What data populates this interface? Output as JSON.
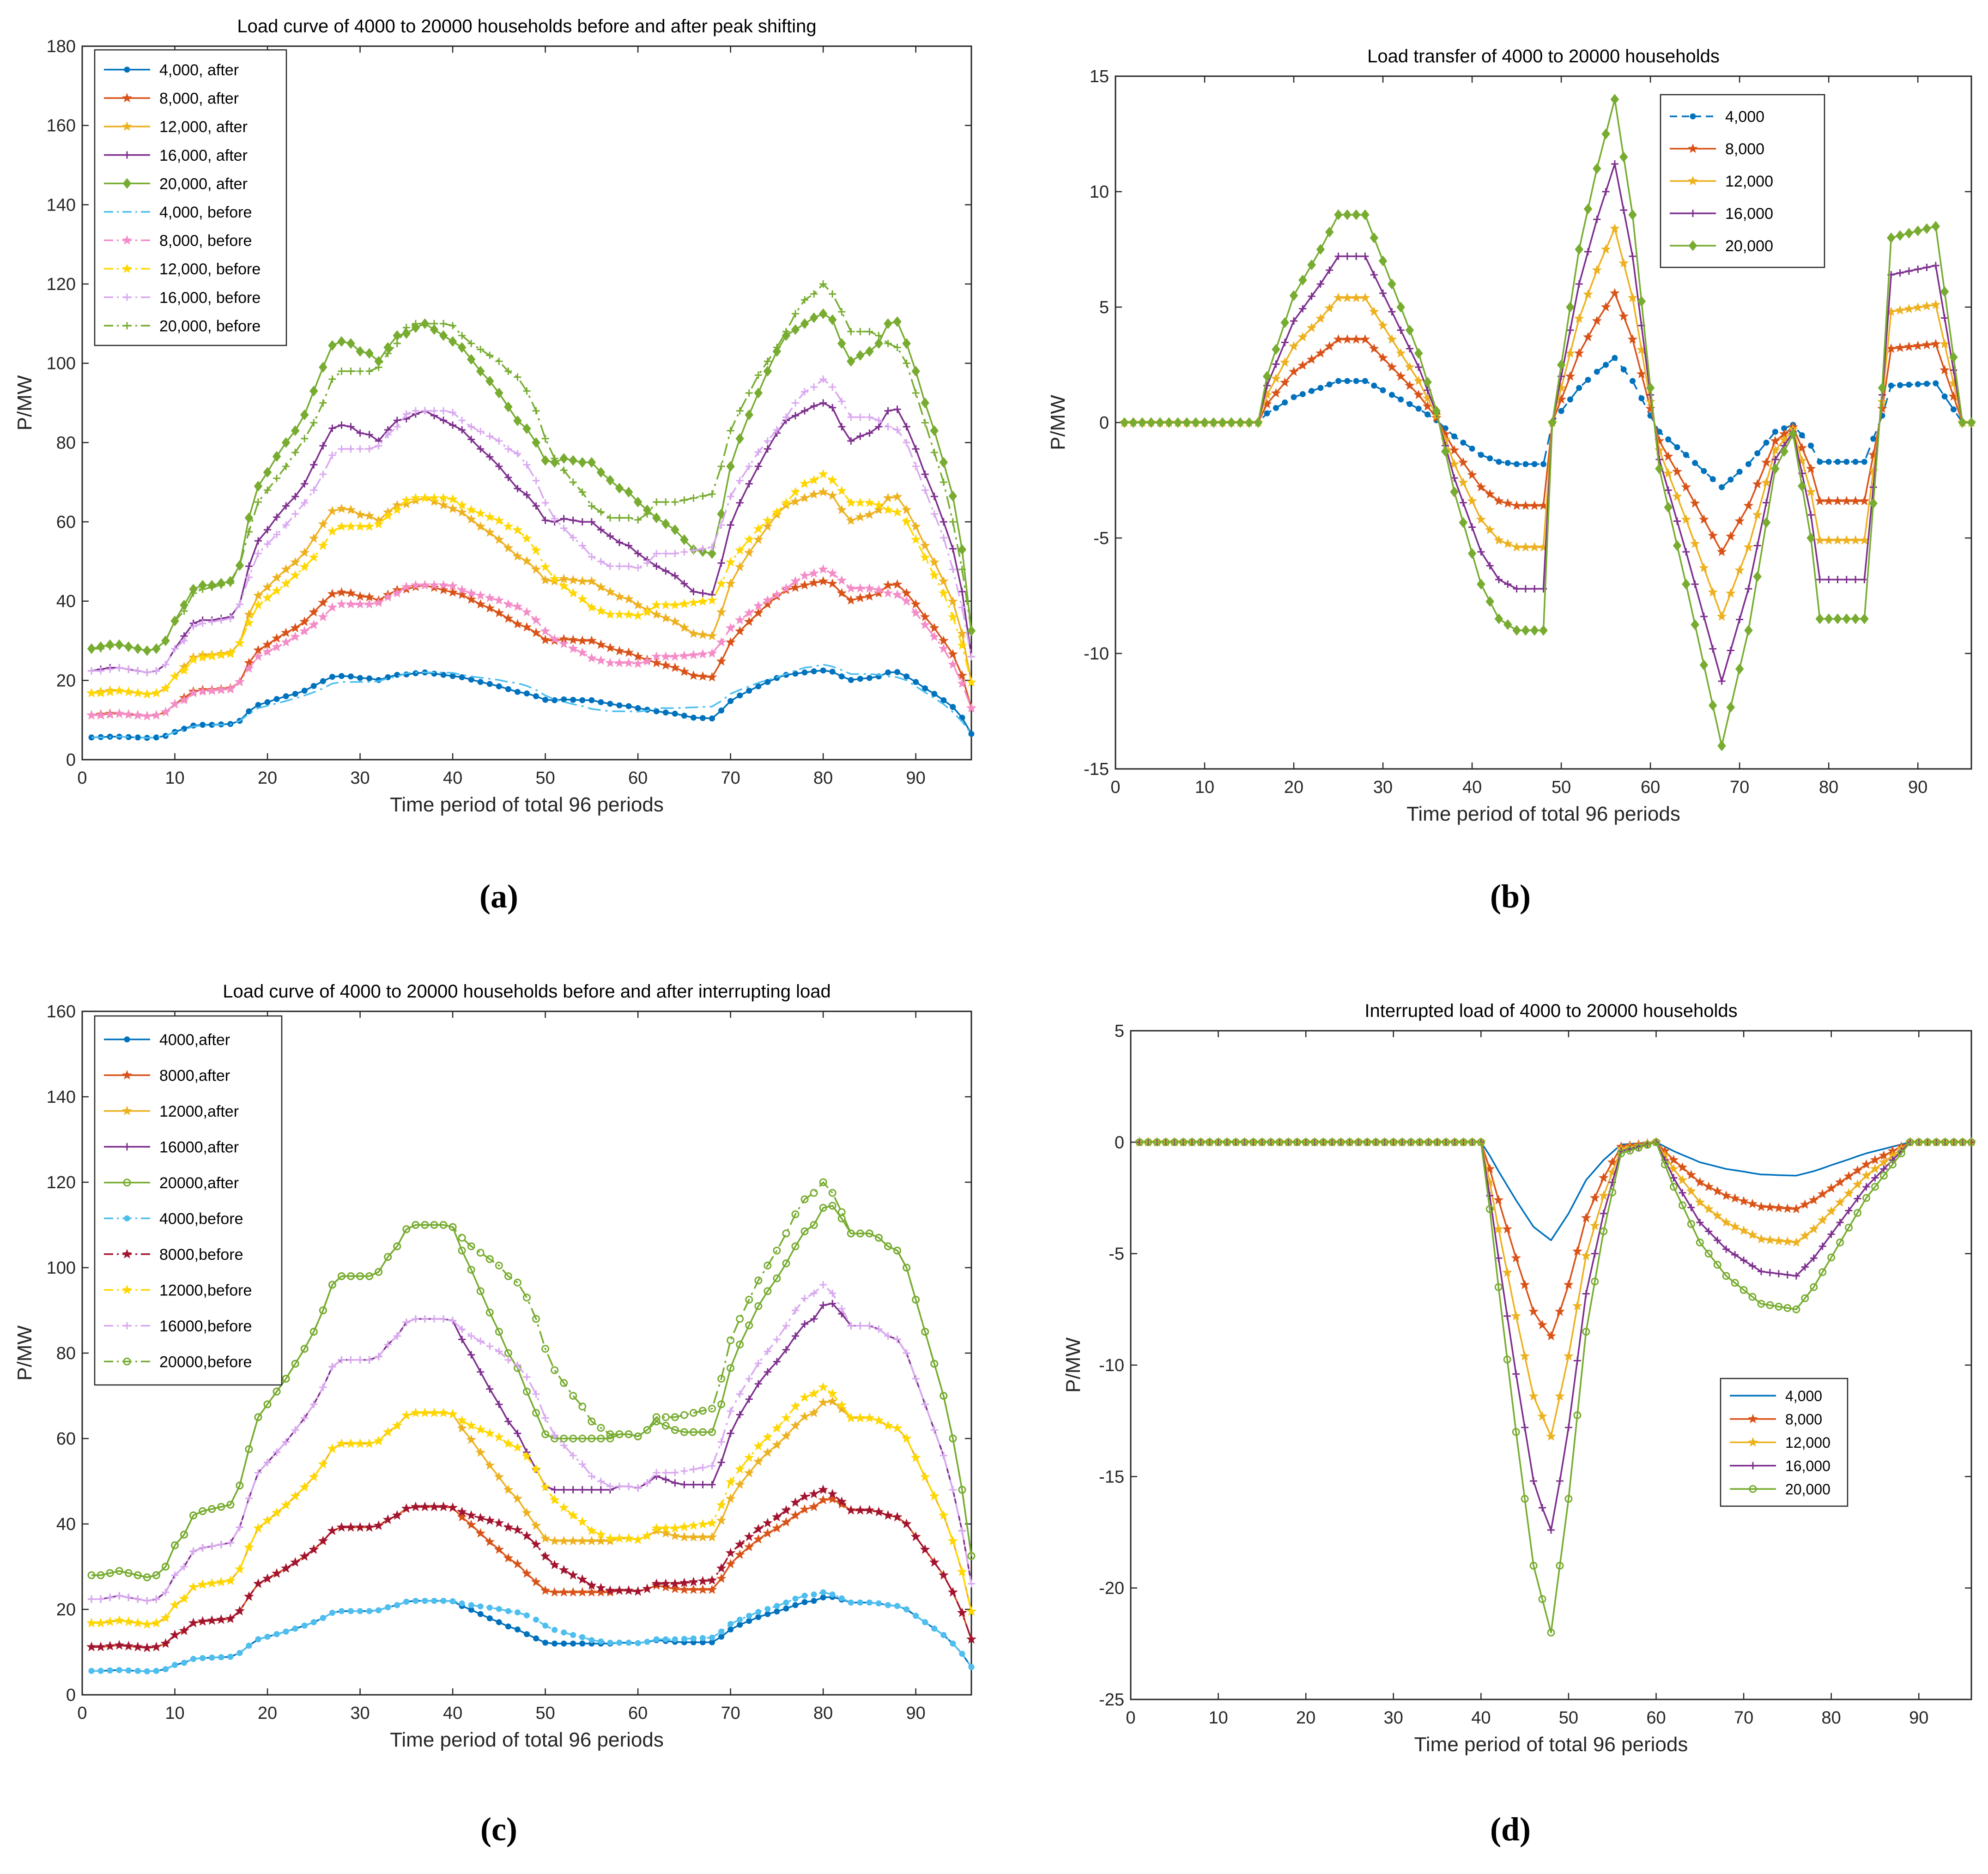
{
  "colors": {
    "blue": "#0072BD",
    "orange": "#D95319",
    "yellow": "#EDB120",
    "purple": "#7E2F8E",
    "green": "#77AC30",
    "lightblue": "#4DBEEE",
    "pink": "#F48CC8",
    "gold": "#FFD700",
    "lavender": "#D9A8F0",
    "darkred": "#A2142F"
  },
  "captions": [
    "(a)",
    "(b)",
    "(c)",
    "(d)"
  ],
  "chart_data": [
    {
      "type": "line",
      "title": "Load curve of 4000 to 20000 households before and after peak shifting",
      "xlabel": "Time period of total 96 periods",
      "ylabel": "P/MW",
      "xlim": [
        0,
        96
      ],
      "ylim": [
        0,
        180
      ],
      "xticks": [
        0,
        10,
        20,
        30,
        40,
        50,
        60,
        70,
        80,
        90
      ],
      "yticks": [
        0,
        20,
        40,
        60,
        80,
        100,
        120,
        140,
        160,
        180
      ],
      "legend_position": "top-left",
      "series": [
        {
          "name": "4,000, after",
          "color": "blue",
          "dash": "solid",
          "marker": "dot",
          "kind": "after",
          "scale": 1
        },
        {
          "name": "8,000, after",
          "color": "orange",
          "dash": "solid",
          "marker": "star",
          "kind": "after",
          "scale": 2
        },
        {
          "name": "12,000, after",
          "color": "yellow",
          "dash": "solid",
          "marker": "star",
          "kind": "after",
          "scale": 3
        },
        {
          "name": "16,000, after",
          "color": "purple",
          "dash": "solid",
          "marker": "plus",
          "kind": "after",
          "scale": 4
        },
        {
          "name": "20,000, after",
          "color": "green",
          "dash": "solid",
          "marker": "diamond",
          "kind": "after",
          "scale": 5
        },
        {
          "name": "4,000, before",
          "color": "lightblue",
          "dash": "dashdot",
          "marker": "none",
          "kind": "before",
          "scale": 1
        },
        {
          "name": "8,000, before",
          "color": "pink",
          "dash": "dashdot",
          "marker": "star",
          "kind": "before",
          "scale": 2
        },
        {
          "name": "12,000, before",
          "color": "gold",
          "dash": "dashdot",
          "marker": "star",
          "kind": "before",
          "scale": 3
        },
        {
          "name": "16,000, before",
          "color": "lavender",
          "dash": "dashdot",
          "marker": "plus",
          "kind": "before",
          "scale": 4
        },
        {
          "name": "20,000, before",
          "color": "green",
          "dash": "dashdot",
          "marker": "plus",
          "kind": "before",
          "scale": 5
        }
      ],
      "base_before_4000": [
        5.6,
        5.6,
        5.7,
        5.8,
        5.7,
        5.6,
        5.5,
        5.6,
        6.0,
        7.0,
        7.5,
        8.4,
        8.6,
        8.7,
        8.8,
        8.9,
        9.8,
        11.5,
        13.0,
        13.6,
        14.2,
        14.8,
        15.5,
        16.2,
        17.0,
        18.0,
        19.2,
        19.6,
        19.6,
        19.6,
        19.6,
        19.8,
        20.5,
        21.0,
        21.8,
        22.0,
        22.0,
        22.0,
        22.0,
        21.9,
        21.4,
        21.0,
        20.7,
        20.4,
        20.1,
        19.6,
        19.3,
        18.6,
        17.6,
        16.2,
        15.2,
        14.6,
        14.0,
        13.5,
        12.8,
        12.5,
        12.2,
        12.2,
        12.2,
        12.1,
        12.4,
        13.0,
        13.0,
        13.0,
        13.1,
        13.2,
        13.3,
        13.4,
        14.8,
        16.6,
        17.6,
        18.5,
        19.4,
        20.1,
        20.8,
        21.6,
        22.5,
        23.2,
        23.5,
        24.0,
        23.5,
        22.6,
        21.6,
        21.6,
        21.6,
        21.4,
        21.0,
        20.8,
        20.0,
        18.5,
        17.0,
        15.5,
        14.0,
        12.0,
        9.6,
        6.5
      ],
      "base_after_4000": [
        5.6,
        5.7,
        5.8,
        5.8,
        5.7,
        5.6,
        5.5,
        5.6,
        6.0,
        7.0,
        7.8,
        8.6,
        8.8,
        8.8,
        8.9,
        9.0,
        9.8,
        12.2,
        13.8,
        14.5,
        15.3,
        16.0,
        16.6,
        17.4,
        18.6,
        19.8,
        20.9,
        21.1,
        21.0,
        20.6,
        20.5,
        20.1,
        20.8,
        21.4,
        21.5,
        21.8,
        22.0,
        21.7,
        21.4,
        21.1,
        20.8,
        20.2,
        19.6,
        19.1,
        18.5,
        17.8,
        17.1,
        16.7,
        16.0,
        15.1,
        15.0,
        15.2,
        15.1,
        15.0,
        15.0,
        14.5,
        14.1,
        13.7,
        13.5,
        13.0,
        12.6,
        12.2,
        11.9,
        11.6,
        11.1,
        10.6,
        10.5,
        10.4,
        12.4,
        14.8,
        16.2,
        17.4,
        18.5,
        19.6,
        20.6,
        21.4,
        21.7,
        22.0,
        22.3,
        22.5,
        22.2,
        21.0,
        20.1,
        20.4,
        20.6,
        21.0,
        22.0,
        22.1,
        21.0,
        19.6,
        18.0,
        16.6,
        15.0,
        13.3,
        10.6,
        6.5
      ],
      "base_intr_after_4000": [
        5.6,
        5.6,
        5.7,
        5.8,
        5.7,
        5.6,
        5.5,
        5.6,
        6.0,
        7.0,
        7.5,
        8.4,
        8.6,
        8.7,
        8.8,
        8.9,
        9.8,
        11.5,
        13.0,
        13.6,
        14.2,
        14.8,
        15.5,
        16.2,
        17.0,
        18.0,
        19.2,
        19.6,
        19.6,
        19.6,
        19.6,
        19.8,
        20.5,
        21.0,
        21.8,
        22.0,
        22.0,
        22.0,
        22.0,
        21.9,
        20.8,
        19.9,
        18.9,
        17.9,
        17.0,
        16.0,
        15.3,
        14.2,
        13.2,
        12.2,
        12.0,
        12.0,
        12.0,
        12.0,
        12.0,
        12.0,
        12.0,
        12.2,
        12.2,
        12.1,
        12.4,
        12.8,
        12.6,
        12.4,
        12.3,
        12.3,
        12.3,
        12.3,
        13.6,
        15.3,
        16.4,
        17.3,
        18.2,
        18.9,
        19.5,
        20.2,
        21.0,
        21.7,
        22.0,
        22.8,
        22.9,
        22.3,
        21.6,
        21.6,
        21.6,
        21.4,
        21.0,
        20.8,
        20.0,
        18.5,
        17.0,
        15.5,
        14.0,
        12.0,
        9.6,
        6.5
      ]
    },
    {
      "type": "line",
      "title": "Load transfer of 4000 to 20000 households",
      "xlabel": "Time period of total 96 periods",
      "ylabel": "P/MW",
      "xlim": [
        0,
        96
      ],
      "ylim": [
        -15,
        15
      ],
      "xticks": [
        0,
        10,
        20,
        30,
        40,
        50,
        60,
        70,
        80,
        90
      ],
      "yticks": [
        -15,
        -10,
        -5,
        0,
        5,
        10,
        15
      ],
      "legend_position": "top-center",
      "series": [
        {
          "name": "4,000",
          "color": "blue",
          "dash": "dashed",
          "marker": "dot",
          "scale": 1
        },
        {
          "name": "8,000",
          "color": "orange",
          "dash": "solid",
          "marker": "star",
          "scale": 2
        },
        {
          "name": "12,000",
          "color": "yellow",
          "dash": "solid",
          "marker": "star",
          "scale": 3
        },
        {
          "name": "16,000",
          "color": "purple",
          "dash": "solid",
          "marker": "plus",
          "scale": 4
        },
        {
          "name": "20,000",
          "color": "green",
          "dash": "solid",
          "marker": "diamond",
          "scale": 5
        }
      ],
      "base_transfer_4000_anchors": [
        [
          1,
          0
        ],
        [
          16,
          0
        ],
        [
          17,
          0.4
        ],
        [
          20,
          1.1
        ],
        [
          23,
          1.5
        ],
        [
          25,
          1.8
        ],
        [
          28,
          1.8
        ],
        [
          31,
          1.2
        ],
        [
          34,
          0.6
        ],
        [
          36,
          0.1
        ],
        [
          38,
          -0.6
        ],
        [
          41,
          -1.4
        ],
        [
          43,
          -1.7
        ],
        [
          45,
          -1.8
        ],
        [
          48,
          -1.8
        ],
        [
          49,
          0
        ],
        [
          52,
          1.5
        ],
        [
          54,
          2.2
        ],
        [
          56,
          2.8
        ],
        [
          58,
          1.8
        ],
        [
          60,
          0.3
        ],
        [
          61,
          -0.4
        ],
        [
          64,
          -1.4
        ],
        [
          68,
          -2.8
        ],
        [
          71,
          -1.8
        ],
        [
          74,
          -0.4
        ],
        [
          76,
          -0.1
        ],
        [
          78,
          -1.0
        ],
        [
          79,
          -1.7
        ],
        [
          84,
          -1.7
        ],
        [
          86,
          0.3
        ],
        [
          87,
          1.6
        ],
        [
          92,
          1.7
        ],
        [
          95,
          0
        ],
        [
          96,
          0
        ]
      ]
    },
    {
      "type": "line",
      "title": "Load curve of 4000 to 20000 households before and after interrupting load",
      "xlabel": "Time period of total 96 periods",
      "ylabel": "P/MW",
      "xlim": [
        0,
        96
      ],
      "ylim": [
        0,
        160
      ],
      "xticks": [
        0,
        10,
        20,
        30,
        40,
        50,
        60,
        70,
        80,
        90
      ],
      "yticks": [
        0,
        20,
        40,
        60,
        80,
        100,
        120,
        140,
        160
      ],
      "legend_position": "top-left",
      "series": [
        {
          "name": "4000,after",
          "color": "blue",
          "dash": "solid",
          "marker": "dot",
          "kind": "after",
          "scale": 1
        },
        {
          "name": "8000,after",
          "color": "orange",
          "dash": "solid",
          "marker": "star",
          "kind": "after",
          "scale": 2
        },
        {
          "name": "12000,after",
          "color": "yellow",
          "dash": "solid",
          "marker": "star",
          "kind": "after",
          "scale": 3
        },
        {
          "name": "16000,after",
          "color": "purple",
          "dash": "solid",
          "marker": "plus",
          "kind": "after",
          "scale": 4
        },
        {
          "name": "20000,after",
          "color": "green",
          "dash": "solid",
          "marker": "circle",
          "kind": "after",
          "scale": 5
        },
        {
          "name": "4000,before",
          "color": "lightblue",
          "dash": "dashdot",
          "marker": "dot",
          "kind": "before",
          "scale": 1
        },
        {
          "name": "8000,before",
          "color": "darkred",
          "dash": "dashdot",
          "marker": "star",
          "kind": "before",
          "scale": 2
        },
        {
          "name": "12000,before",
          "color": "gold",
          "dash": "dashdot",
          "marker": "star",
          "kind": "before",
          "scale": 3
        },
        {
          "name": "16000,before",
          "color": "lavender",
          "dash": "dashdot",
          "marker": "plus",
          "kind": "before",
          "scale": 4
        },
        {
          "name": "20000,before",
          "color": "green",
          "dash": "dashdot",
          "marker": "circle",
          "kind": "before",
          "scale": 5
        }
      ]
    },
    {
      "type": "line",
      "title": "Interrupted load of 4000 to 20000 households",
      "xlabel": "Time period of total 96 periods",
      "ylabel": "P/MW",
      "xlim": [
        0,
        96
      ],
      "ylim": [
        -25,
        5
      ],
      "xticks": [
        0,
        10,
        20,
        30,
        40,
        50,
        60,
        70,
        80,
        90
      ],
      "yticks": [
        -25,
        -20,
        -15,
        -10,
        -5,
        0,
        5
      ],
      "legend_position": "center-right",
      "series": [
        {
          "name": "4,000",
          "color": "blue",
          "dash": "solid",
          "marker": "none",
          "scale": 1
        },
        {
          "name": "8,000",
          "color": "orange",
          "dash": "solid",
          "marker": "star",
          "scale": 2
        },
        {
          "name": "12,000",
          "color": "yellow",
          "dash": "solid",
          "marker": "star",
          "scale": 3
        },
        {
          "name": "16,000",
          "color": "purple",
          "dash": "solid",
          "marker": "plus",
          "scale": 4
        },
        {
          "name": "20,000",
          "color": "green",
          "dash": "solid",
          "marker": "circle",
          "scale": 5
        }
      ],
      "interrupt_anchors_4000": [
        [
          1,
          0
        ],
        [
          40,
          0
        ],
        [
          41,
          -0.6
        ],
        [
          42,
          -1.3
        ],
        [
          44,
          -2.6
        ],
        [
          46,
          -3.8
        ],
        [
          48,
          -4.4
        ],
        [
          50,
          -3.2
        ],
        [
          52,
          -1.7
        ],
        [
          54,
          -0.8
        ],
        [
          56,
          -0.1
        ],
        [
          60,
          0
        ],
        [
          62,
          -0.4
        ],
        [
          65,
          -0.9
        ],
        [
          68,
          -1.2
        ],
        [
          72,
          -1.45
        ],
        [
          76,
          -1.5
        ],
        [
          78,
          -1.3
        ],
        [
          81,
          -0.9
        ],
        [
          84,
          -0.5
        ],
        [
          87,
          -0.2
        ],
        [
          89,
          0
        ],
        [
          96,
          0
        ]
      ],
      "interrupt_peak_points": [
        [
          48,
          -4.4
        ],
        [
          48,
          -8.7
        ],
        [
          48,
          -13.2
        ],
        [
          48,
          -17.4
        ],
        [
          48,
          -22.0
        ]
      ]
    }
  ]
}
